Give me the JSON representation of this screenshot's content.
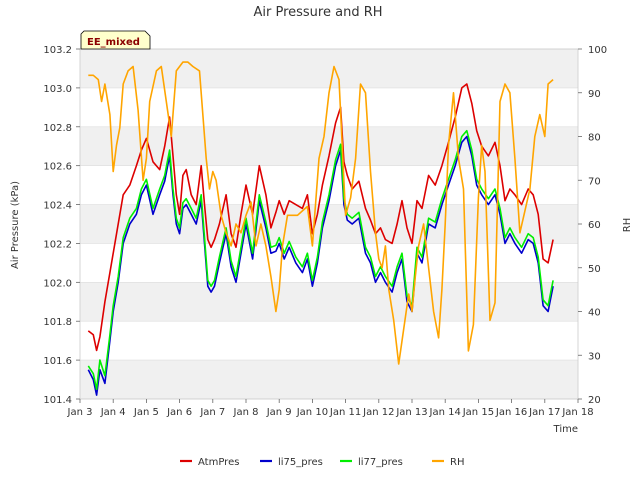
{
  "chart_data": {
    "type": "line",
    "title": "Air Pressure and RH",
    "badge": "EE_mixed",
    "xlabel": "Time",
    "ylabel": "Air Pressure (kPa)",
    "y2label": "RH",
    "x_ticks": [
      "Jan 3",
      "Jan 4",
      "Jan 5",
      "Jan 6",
      "Jan 7",
      "Jan 8",
      "Jan 9",
      "Jan 10",
      "Jan 11",
      "Jan 12",
      "Jan 13",
      "Jan 14",
      "Jan 15",
      "Jan 16",
      "Jan 17",
      "Jan 18"
    ],
    "xlim": [
      3,
      18
    ],
    "ylim": [
      101.4,
      103.2
    ],
    "y_ticks": [
      "101.4",
      "101.6",
      "101.8",
      "102.0",
      "102.2",
      "102.4",
      "102.6",
      "102.8",
      "103.0",
      "103.2"
    ],
    "y2lim": [
      20,
      100
    ],
    "y2_ticks": [
      "20",
      "30",
      "40",
      "50",
      "60",
      "70",
      "80",
      "90",
      "100"
    ],
    "grid": true,
    "legend_position": "bottom",
    "colors": {
      "AtmPres": "#dd0000",
      "li75_pres": "#0000cc",
      "li77_pres": "#00ee00",
      "RH": "#ffa500",
      "band": "#f0f0f0",
      "badge_bg": "#ffffcc"
    },
    "series": [
      {
        "name": "AtmPres",
        "axis": "left",
        "x": [
          3.25,
          3.4,
          3.5,
          3.6,
          3.75,
          3.9,
          4.0,
          4.15,
          4.3,
          4.5,
          4.7,
          4.85,
          5.0,
          5.2,
          5.4,
          5.55,
          5.7,
          5.8,
          5.9,
          6.0,
          6.1,
          6.2,
          6.35,
          6.5,
          6.65,
          6.75,
          6.85,
          6.95,
          7.05,
          7.2,
          7.4,
          7.55,
          7.7,
          7.85,
          8.0,
          8.2,
          8.4,
          8.6,
          8.75,
          8.9,
          9.0,
          9.15,
          9.3,
          9.5,
          9.7,
          9.85,
          10.0,
          10.15,
          10.3,
          10.5,
          10.7,
          10.85,
          10.95,
          11.05,
          11.2,
          11.4,
          11.6,
          11.75,
          11.9,
          12.05,
          12.2,
          12.4,
          12.55,
          12.7,
          12.85,
          13.0,
          13.15,
          13.3,
          13.5,
          13.7,
          13.9,
          14.1,
          14.3,
          14.5,
          14.65,
          14.8,
          14.95,
          15.1,
          15.3,
          15.5,
          15.65,
          15.8,
          15.95,
          16.1,
          16.3,
          16.5,
          16.65,
          16.8,
          16.95,
          17.1,
          17.25
        ],
        "values": [
          101.75,
          101.73,
          101.65,
          101.72,
          101.9,
          102.05,
          102.15,
          102.3,
          102.45,
          102.5,
          102.6,
          102.68,
          102.74,
          102.62,
          102.58,
          102.7,
          102.85,
          102.65,
          102.45,
          102.35,
          102.55,
          102.58,
          102.45,
          102.4,
          102.6,
          102.4,
          102.22,
          102.18,
          102.22,
          102.3,
          102.45,
          102.25,
          102.18,
          102.35,
          102.5,
          102.35,
          102.6,
          102.45,
          102.28,
          102.36,
          102.42,
          102.35,
          102.42,
          102.4,
          102.38,
          102.45,
          102.25,
          102.35,
          102.5,
          102.65,
          102.82,
          102.9,
          102.62,
          102.55,
          102.48,
          102.52,
          102.38,
          102.32,
          102.25,
          102.28,
          102.22,
          102.2,
          102.3,
          102.42,
          102.28,
          102.2,
          102.42,
          102.38,
          102.55,
          102.5,
          102.6,
          102.72,
          102.85,
          103.0,
          103.02,
          102.92,
          102.78,
          102.7,
          102.65,
          102.72,
          102.6,
          102.42,
          102.48,
          102.45,
          102.4,
          102.48,
          102.45,
          102.35,
          102.12,
          102.1,
          102.22
        ]
      },
      {
        "name": "li75_pres",
        "axis": "left",
        "x": [
          3.25,
          3.4,
          3.5,
          3.6,
          3.75,
          3.9,
          4.0,
          4.15,
          4.3,
          4.5,
          4.7,
          4.85,
          5.0,
          5.2,
          5.4,
          5.55,
          5.7,
          5.8,
          5.9,
          6.0,
          6.1,
          6.2,
          6.35,
          6.5,
          6.65,
          6.75,
          6.85,
          6.95,
          7.05,
          7.2,
          7.4,
          7.55,
          7.7,
          7.85,
          8.0,
          8.2,
          8.4,
          8.6,
          8.75,
          8.9,
          9.0,
          9.15,
          9.3,
          9.5,
          9.7,
          9.85,
          10.0,
          10.15,
          10.3,
          10.5,
          10.7,
          10.85,
          10.95,
          11.05,
          11.2,
          11.4,
          11.6,
          11.75,
          11.9,
          12.05,
          12.2,
          12.4,
          12.55,
          12.7,
          12.85,
          13.0,
          13.15,
          13.3,
          13.5,
          13.7,
          13.9,
          14.1,
          14.3,
          14.5,
          14.65,
          14.8,
          14.95,
          15.1,
          15.3,
          15.5,
          15.65,
          15.8,
          15.95,
          16.1,
          16.3,
          16.5,
          16.65,
          16.8,
          16.95,
          17.1,
          17.25
        ],
        "values": [
          101.55,
          101.5,
          101.42,
          101.55,
          101.48,
          101.7,
          101.85,
          102.0,
          102.2,
          102.3,
          102.35,
          102.45,
          102.5,
          102.35,
          102.45,
          102.52,
          102.65,
          102.45,
          102.3,
          102.25,
          102.38,
          102.4,
          102.35,
          102.3,
          102.42,
          102.2,
          101.98,
          101.95,
          101.98,
          102.1,
          102.25,
          102.08,
          102.0,
          102.15,
          102.3,
          102.12,
          102.42,
          102.28,
          102.15,
          102.16,
          102.2,
          102.12,
          102.18,
          102.1,
          102.05,
          102.12,
          101.98,
          102.1,
          102.28,
          102.42,
          102.6,
          102.68,
          102.4,
          102.32,
          102.3,
          102.33,
          102.15,
          102.1,
          102.0,
          102.05,
          102.0,
          101.95,
          102.05,
          102.12,
          101.9,
          101.85,
          102.15,
          102.1,
          102.3,
          102.28,
          102.4,
          102.5,
          102.6,
          102.72,
          102.75,
          102.65,
          102.5,
          102.45,
          102.4,
          102.45,
          102.35,
          102.2,
          102.25,
          102.2,
          102.15,
          102.22,
          102.2,
          102.1,
          101.88,
          101.85,
          101.98
        ]
      },
      {
        "name": "li77_pres",
        "axis": "left",
        "x": [
          3.25,
          3.4,
          3.5,
          3.6,
          3.75,
          3.9,
          4.0,
          4.15,
          4.3,
          4.5,
          4.7,
          4.85,
          5.0,
          5.2,
          5.4,
          5.55,
          5.7,
          5.8,
          5.9,
          6.0,
          6.1,
          6.2,
          6.35,
          6.5,
          6.65,
          6.75,
          6.85,
          6.95,
          7.05,
          7.2,
          7.4,
          7.55,
          7.7,
          7.85,
          8.0,
          8.2,
          8.4,
          8.6,
          8.75,
          8.9,
          9.0,
          9.15,
          9.3,
          9.5,
          9.7,
          9.85,
          10.0,
          10.15,
          10.3,
          10.5,
          10.7,
          10.85,
          10.95,
          11.05,
          11.2,
          11.4,
          11.6,
          11.75,
          11.9,
          12.05,
          12.2,
          12.4,
          12.55,
          12.7,
          12.85,
          13.0,
          13.15,
          13.3,
          13.5,
          13.7,
          13.9,
          14.1,
          14.3,
          14.5,
          14.65,
          14.8,
          14.95,
          15.1,
          15.3,
          15.5,
          15.65,
          15.8,
          15.95,
          16.1,
          16.3,
          16.5,
          16.65,
          16.8,
          16.95,
          17.1,
          17.25
        ],
        "values": [
          101.57,
          101.53,
          101.45,
          101.6,
          101.52,
          101.73,
          101.88,
          102.03,
          102.23,
          102.33,
          102.38,
          102.48,
          102.53,
          102.38,
          102.48,
          102.55,
          102.68,
          102.48,
          102.33,
          102.28,
          102.41,
          102.43,
          102.38,
          102.33,
          102.45,
          102.23,
          102.01,
          101.98,
          102.01,
          102.13,
          102.28,
          102.11,
          102.03,
          102.18,
          102.33,
          102.15,
          102.45,
          102.31,
          102.18,
          102.19,
          102.23,
          102.15,
          102.21,
          102.13,
          102.08,
          102.15,
          102.01,
          102.13,
          102.31,
          102.45,
          102.63,
          102.71,
          102.43,
          102.35,
          102.33,
          102.36,
          102.18,
          102.13,
          102.03,
          102.08,
          102.03,
          101.98,
          102.08,
          102.15,
          101.93,
          101.88,
          102.18,
          102.13,
          102.33,
          102.31,
          102.43,
          102.53,
          102.63,
          102.75,
          102.78,
          102.68,
          102.53,
          102.48,
          102.43,
          102.48,
          102.38,
          102.23,
          102.28,
          102.23,
          102.18,
          102.25,
          102.23,
          102.13,
          101.91,
          101.88,
          102.01
        ]
      },
      {
        "name": "RH",
        "axis": "right",
        "x": [
          3.25,
          3.4,
          3.55,
          3.65,
          3.75,
          3.9,
          4.0,
          4.1,
          4.2,
          4.3,
          4.45,
          4.6,
          4.75,
          4.9,
          5.0,
          5.1,
          5.3,
          5.45,
          5.6,
          5.75,
          5.9,
          6.0,
          6.1,
          6.25,
          6.4,
          6.6,
          6.8,
          6.9,
          7.0,
          7.1,
          7.25,
          7.4,
          7.55,
          7.7,
          7.85,
          8.0,
          8.15,
          8.3,
          8.45,
          8.6,
          8.75,
          8.9,
          9.0,
          9.1,
          9.25,
          9.4,
          9.55,
          9.7,
          9.85,
          10.0,
          10.1,
          10.2,
          10.35,
          10.5,
          10.65,
          10.8,
          11.0,
          11.15,
          11.3,
          11.45,
          11.6,
          11.75,
          11.9,
          12.0,
          12.1,
          12.2,
          12.3,
          12.45,
          12.6,
          12.75,
          12.9,
          13.0,
          13.1,
          13.2,
          13.35,
          13.5,
          13.65,
          13.8,
          13.9,
          14.0,
          14.1,
          14.25,
          14.4,
          14.55,
          14.7,
          14.85,
          15.0,
          15.1,
          15.2,
          15.35,
          15.5,
          15.65,
          15.8,
          15.95,
          16.1,
          16.25,
          16.4,
          16.55,
          16.7,
          16.85,
          17.0,
          17.1,
          17.25
        ],
        "values": [
          94,
          94,
          93,
          88,
          92,
          85,
          72,
          78,
          82,
          92,
          95,
          96,
          86,
          70,
          75,
          88,
          95,
          96,
          88,
          80,
          95,
          96,
          97,
          97,
          96,
          95,
          75,
          68,
          72,
          70,
          62,
          58,
          55,
          60,
          58,
          62,
          65,
          55,
          60,
          55,
          48,
          40,
          45,
          55,
          62,
          62,
          62,
          63,
          64,
          55,
          65,
          75,
          80,
          90,
          96,
          93,
          62,
          66,
          75,
          92,
          90,
          72,
          58,
          52,
          50,
          55,
          45,
          38,
          28,
          36,
          44,
          40,
          48,
          55,
          60,
          50,
          40,
          34,
          45,
          60,
          78,
          90,
          75,
          68,
          31,
          37,
          66,
          78,
          72,
          38,
          42,
          88,
          92,
          90,
          75,
          58,
          63,
          68,
          80,
          85,
          80,
          92,
          93
        ]
      }
    ]
  }
}
